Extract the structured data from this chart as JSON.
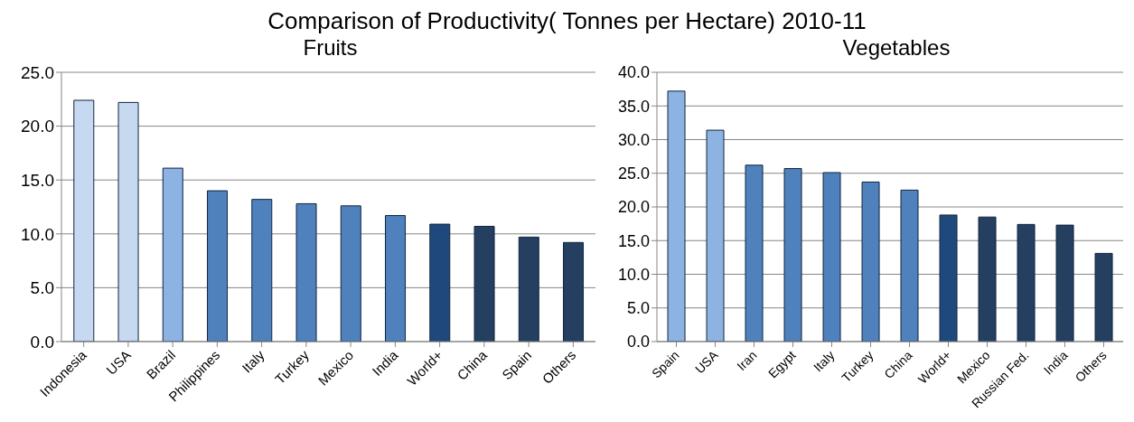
{
  "chart_data": [
    {
      "type": "bar",
      "title": "Comparison of Productivity( Tonnes per Hectare) 2010-11",
      "subtitle": "Fruits",
      "categories": [
        "Indonesia",
        "USA",
        "Brazil",
        "Philippines",
        "Italy",
        "Turkey",
        "Mexico",
        "India",
        "World+",
        "China",
        "Spain",
        "Others"
      ],
      "values": [
        22.4,
        22.2,
        16.1,
        14.0,
        13.2,
        12.8,
        12.6,
        11.7,
        10.9,
        10.7,
        9.7,
        9.2
      ],
      "colors": [
        "#c6d9f1",
        "#c6d9f1",
        "#8db3e2",
        "#4f81bd",
        "#4f81bd",
        "#4f81bd",
        "#4f81bd",
        "#4f81bd",
        "#1f497d",
        "#243f60",
        "#243f60",
        "#243f60"
      ],
      "ylim": [
        0,
        25
      ],
      "yticks": [
        {
          "value": 0,
          "label": "0.0"
        },
        {
          "value": 5,
          "label": "5.0"
        },
        {
          "value": 10,
          "label": "10.0"
        },
        {
          "value": 15,
          "label": "15.0"
        },
        {
          "value": 20,
          "label": "20.0"
        },
        {
          "value": 25,
          "label": "25.0"
        }
      ],
      "grid": "y"
    },
    {
      "type": "bar",
      "title": "Vegetables",
      "categories": [
        "Spain",
        "USA",
        "Iran",
        "Egypt",
        "Italy",
        "Turkey",
        "China",
        "World+",
        "Mexico",
        "Russian Fed.",
        "India",
        "Others"
      ],
      "values": [
        37.2,
        31.4,
        26.2,
        25.7,
        25.1,
        23.7,
        22.5,
        18.8,
        18.5,
        17.4,
        17.3,
        13.1
      ],
      "colors": [
        "#8db3e2",
        "#8db3e2",
        "#4f81bd",
        "#4f81bd",
        "#4f81bd",
        "#4f81bd",
        "#4f81bd",
        "#1f497d",
        "#243f60",
        "#243f60",
        "#243f60",
        "#243f60"
      ],
      "ylim": [
        0,
        40
      ],
      "yticks": [
        {
          "value": 0,
          "label": "0.0"
        },
        {
          "value": 5,
          "label": "5.0"
        },
        {
          "value": 10,
          "label": "10.0"
        },
        {
          "value": 15,
          "label": "15.0"
        },
        {
          "value": 20,
          "label": "20.0"
        },
        {
          "value": 25,
          "label": "25.0"
        },
        {
          "value": 30,
          "label": "30.0"
        },
        {
          "value": 35,
          "label": "35.0"
        },
        {
          "value": 40,
          "label": "40.0"
        }
      ],
      "grid": "y"
    }
  ]
}
